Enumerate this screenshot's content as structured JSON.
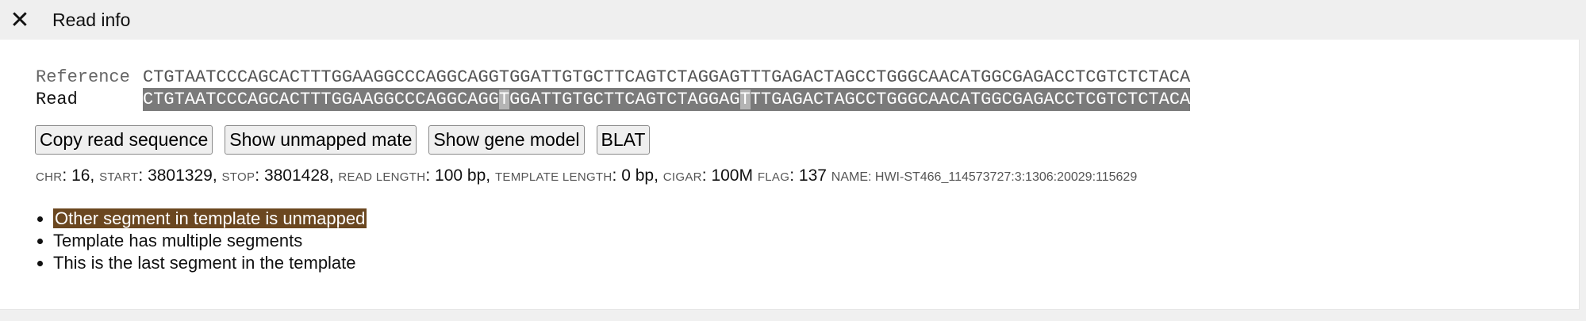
{
  "header": {
    "title": "Read info",
    "close_icon": "close-icon"
  },
  "alignment": {
    "reference_label": "Reference",
    "read_label": "Read",
    "reference_sequence": "CTGTAATCCCAGCACTTTGGAAGGCCCAGGCAGGTGGATTGTGCTTCAGTCTAGGAGTTTGAGACTAGCCTGGGCAACATGGCGAGACCTCGTCTCTACA",
    "read_segments": [
      {
        "text": "CTGTAATCCCAGCACTTTGGAAGGCCCAGGCAGG",
        "mismatch": false
      },
      {
        "text": "T",
        "mismatch": true
      },
      {
        "text": "GGATTGTGCTTCAGTCTAGGAG",
        "mismatch": false
      },
      {
        "text": "T",
        "mismatch": true
      },
      {
        "text": "TTGAGACTAGCCTGGGCAACATGGCGAGACCTCGTCTCTACA",
        "mismatch": false
      }
    ]
  },
  "buttons": {
    "copy": "Copy read sequence",
    "mate": "Show unmapped mate",
    "gene_model": "Show gene model",
    "blat": "BLAT"
  },
  "info": {
    "chr_key": "CHR",
    "chr_val": ": 16, ",
    "start_key": "START",
    "start_val": ": 3801329, ",
    "stop_key": "STOP",
    "stop_val": ": 3801428, ",
    "len_key": "READ LENGTH",
    "len_val": ": 100 bp, ",
    "tlen_key": "TEMPLATE LENGTH",
    "tlen_val": ": 0 bp, ",
    "cigar_key": "CIGAR",
    "cigar_val": ": 100M ",
    "flag_key": "FLAG",
    "flag_val": ": 137 ",
    "name": "NAME: HWI-ST466_114573727:3:1306:20029:115629"
  },
  "flags": [
    {
      "text": "Other segment in template is unmapped",
      "highlight": true,
      "highlight_color": "#6b4720"
    },
    {
      "text": "Template has multiple segments",
      "highlight": false
    },
    {
      "text": "This is the last segment in the template",
      "highlight": false
    }
  ]
}
